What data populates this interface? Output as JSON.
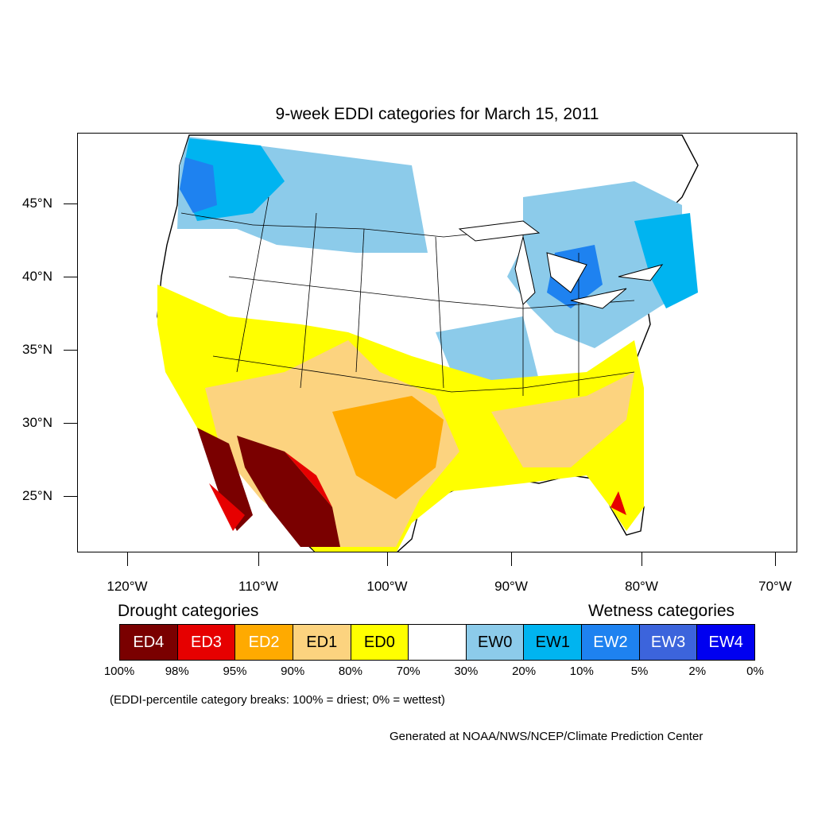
{
  "map": {
    "title": "9-week EDDI categories for March 15, 2011",
    "lat_labels": [
      "45°N",
      "40°N",
      "35°N",
      "30°N",
      "25°N"
    ],
    "lon_labels": [
      "120°W",
      "110°W",
      "100°W",
      "90°W",
      "80°W",
      "70°W"
    ]
  },
  "legend": {
    "drought_title": "Drought categories",
    "wetness_title": "Wetness categories",
    "categories": [
      {
        "label": "ED4",
        "color": "#7a0000",
        "text_color": "#ffffff"
      },
      {
        "label": "ED3",
        "color": "#e60000",
        "text_color": "#ffffff"
      },
      {
        "label": "ED2",
        "color": "#ffaa00",
        "text_color": "#ffffff"
      },
      {
        "label": "ED1",
        "color": "#fcd37f",
        "text_color": "#000000"
      },
      {
        "label": "ED0",
        "color": "#ffff00",
        "text_color": "#000000"
      },
      {
        "label": "",
        "color": "#ffffff",
        "text_color": "#000000"
      },
      {
        "label": "EW0",
        "color": "#8ccbea",
        "text_color": "#000000"
      },
      {
        "label": "EW1",
        "color": "#00b4f0",
        "text_color": "#000000"
      },
      {
        "label": "EW2",
        "color": "#1e82f0",
        "text_color": "#ffffff"
      },
      {
        "label": "EW3",
        "color": "#3c64dc",
        "text_color": "#ffffff"
      },
      {
        "label": "EW4",
        "color": "#0000f0",
        "text_color": "#ffffff"
      }
    ],
    "percentiles": [
      "100%",
      "98%",
      "95%",
      "90%",
      "80%",
      "70%",
      "30%",
      "20%",
      "10%",
      "5%",
      "2%",
      "0%"
    ],
    "note": "(EDDI-percentile category breaks: 100% = driest; 0% = wettest)"
  },
  "credit": "Generated at NOAA/NWS/NCEP/Climate Prediction Center"
}
